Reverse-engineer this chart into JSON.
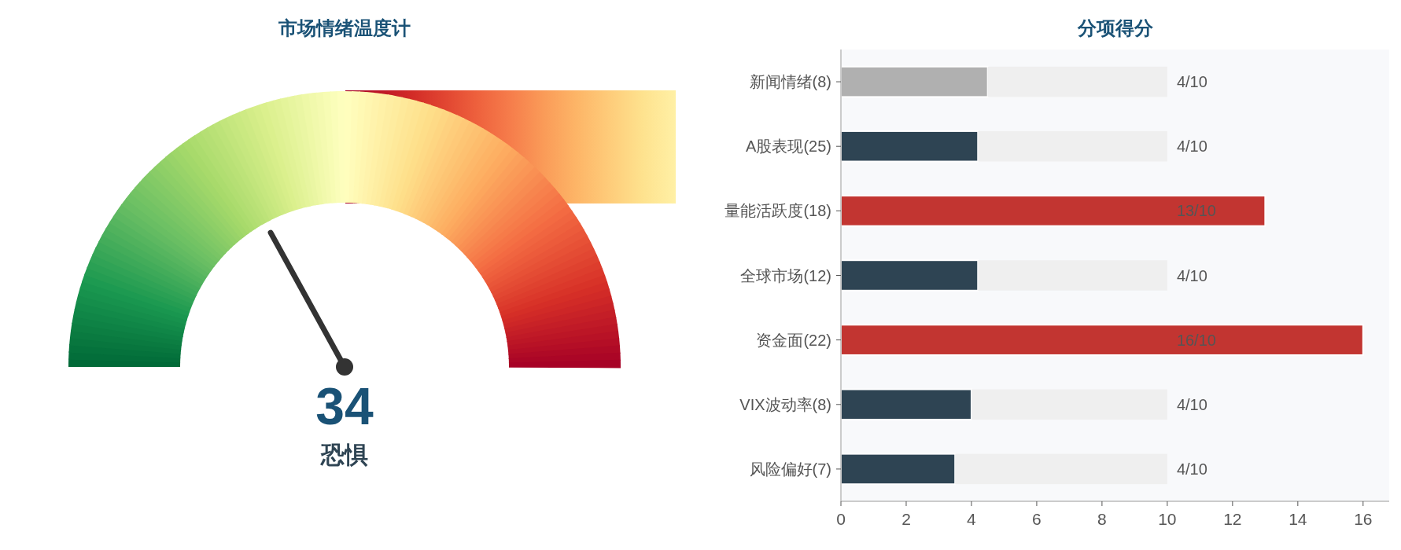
{
  "chart_data": [
    {
      "type": "other",
      "title": "市场情绪温度计",
      "values": [
        34
      ],
      "data_labels": true,
      "annotations": [
        "恐惧"
      ]
    },
    {
      "type": "bar",
      "orientation": "horizontal",
      "stacked": true,
      "title": "分项得分",
      "categories": [
        "新闻情绪(8)",
        "A股表现(25)",
        "量能活跃度(18)",
        "全球市场(12)",
        "资金面(22)",
        "VIX波动率(8)",
        "风险偏好(7)"
      ],
      "series": [
        {
          "colors": [
            "#b0b0b0",
            "#2e4453",
            "#c23531",
            "#2e4453",
            "#c23531",
            "#2e4453",
            "#2e4453"
          ],
          "values": [
            4.5,
            4.2,
            13,
            4.2,
            16,
            4.0,
            3.5
          ]
        },
        {
          "color": "#efefef",
          "values": [
            5.5,
            5.8,
            null,
            5.8,
            null,
            6.0,
            6.5
          ]
        }
      ],
      "annotations": [
        "4/10",
        "4/10",
        "13/10",
        "4/10",
        "16/10",
        "4/10",
        "4/10"
      ],
      "xlim": [
        0,
        16.8
      ],
      "xticks": [
        0,
        2,
        4,
        6,
        8,
        10,
        12,
        14,
        16
      ],
      "grid": false
    }
  ]
}
